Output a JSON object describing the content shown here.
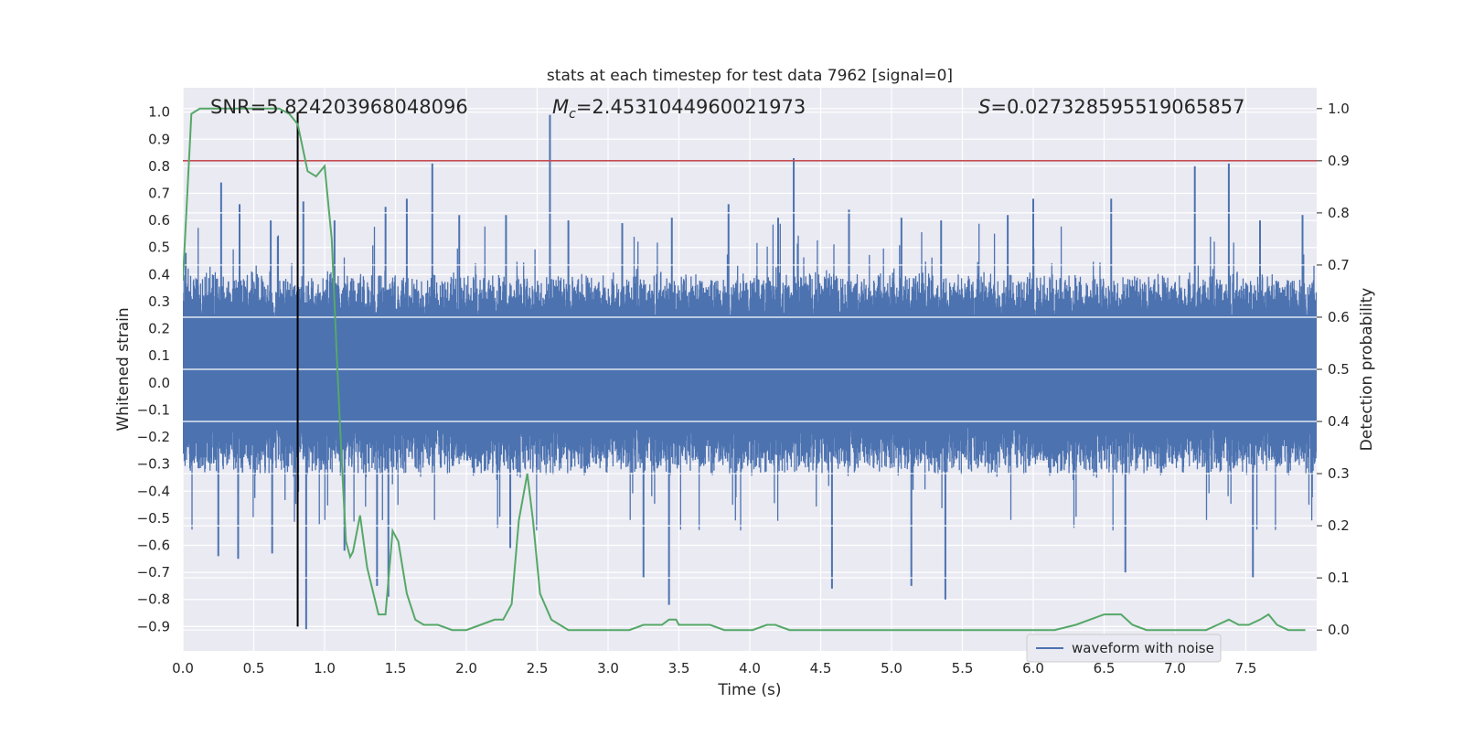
{
  "chart_data": {
    "type": "line",
    "title": "stats at each timestep for test data 7962 [signal=0]",
    "xlabel": "Time (s)",
    "ylabel_left": "Whitened strain",
    "ylabel_right": "Detection probability",
    "xlim": [
      0.0,
      8.0
    ],
    "ylim_left": [
      -0.99,
      1.09
    ],
    "ylim_right": [
      -0.04,
      1.04
    ],
    "x_ticks": [
      "0.0",
      "0.5",
      "1.0",
      "1.5",
      "2.0",
      "2.5",
      "3.0",
      "3.5",
      "4.0",
      "4.5",
      "5.0",
      "5.5",
      "6.0",
      "6.5",
      "7.0",
      "7.5"
    ],
    "y_ticks_left": [
      "−0.9",
      "−0.8",
      "−0.7",
      "−0.6",
      "−0.5",
      "−0.4",
      "−0.3",
      "−0.2",
      "−0.1",
      "0.0",
      "0.1",
      "0.2",
      "0.3",
      "0.4",
      "0.5",
      "0.6",
      "0.7",
      "0.8",
      "0.9",
      "1.0"
    ],
    "y_ticks_right": [
      "0.0",
      "0.1",
      "0.2",
      "0.3",
      "0.4",
      "0.5",
      "0.6",
      "0.7",
      "0.8",
      "0.9",
      "1.0"
    ],
    "grid": true,
    "legend_position": "lower-right",
    "annotations": {
      "snr": "SNR=5.824203968048096",
      "mc_symbol": "M",
      "mc_sub": "c",
      "mc_value": "=2.4531044960021973",
      "s_symbol": "S",
      "s_value": "=0.027328595519065857"
    },
    "threshold_right": 0.9,
    "marker_x": 0.81,
    "series": [
      {
        "name": "waveform with noise",
        "axis": "left",
        "color": "#4c72b0",
        "sample_rate_hz": 512,
        "typical_envelope": [
          -0.35,
          0.42
        ],
        "peaks_up": [
          [
            0.02,
            0.48
          ],
          [
            0.27,
            0.74
          ],
          [
            0.4,
            0.66
          ],
          [
            0.62,
            0.6
          ],
          [
            0.85,
            0.67
          ],
          [
            1.07,
            0.6
          ],
          [
            1.43,
            0.65
          ],
          [
            1.58,
            0.68
          ],
          [
            1.76,
            0.81
          ],
          [
            1.95,
            0.62
          ],
          [
            2.28,
            0.62
          ],
          [
            2.59,
            0.99
          ],
          [
            2.72,
            0.6
          ],
          [
            3.1,
            0.59
          ],
          [
            3.45,
            0.61
          ],
          [
            3.85,
            0.66
          ],
          [
            4.2,
            0.61
          ],
          [
            4.31,
            0.83
          ],
          [
            4.7,
            0.64
          ],
          [
            5.07,
            0.61
          ],
          [
            5.35,
            0.6
          ],
          [
            5.82,
            0.62
          ],
          [
            6.0,
            0.68
          ],
          [
            6.55,
            0.68
          ],
          [
            7.14,
            0.8
          ],
          [
            7.38,
            0.81
          ],
          [
            7.6,
            0.6
          ],
          [
            7.9,
            0.62
          ]
        ],
        "peaks_down": [
          [
            0.25,
            -0.64
          ],
          [
            0.39,
            -0.65
          ],
          [
            0.63,
            -0.63
          ],
          [
            0.87,
            -0.91
          ],
          [
            1.14,
            -0.62
          ],
          [
            1.37,
            -0.75
          ],
          [
            1.45,
            -0.79
          ],
          [
            2.31,
            -0.61
          ],
          [
            3.25,
            -0.72
          ],
          [
            3.43,
            -0.82
          ],
          [
            4.58,
            -0.76
          ],
          [
            5.14,
            -0.75
          ],
          [
            5.38,
            -0.8
          ],
          [
            6.65,
            -0.7
          ],
          [
            7.55,
            -0.72
          ]
        ]
      },
      {
        "name": "",
        "axis": "right",
        "color": "#55a868",
        "x": [
          0.0,
          0.06,
          0.12,
          0.22,
          0.38,
          0.55,
          0.68,
          0.75,
          0.81,
          0.88,
          0.94,
          1.0,
          1.05,
          1.09,
          1.12,
          1.15,
          1.18,
          1.2,
          1.25,
          1.3,
          1.38,
          1.43,
          1.48,
          1.52,
          1.58,
          1.64,
          1.7,
          1.8,
          1.9,
          2.0,
          2.1,
          2.2,
          2.26,
          2.32,
          2.37,
          2.43,
          2.47,
          2.52,
          2.6,
          2.66,
          2.72,
          2.82,
          3.0,
          3.15,
          3.25,
          3.38,
          3.43,
          3.48,
          3.5,
          3.55,
          3.62,
          3.72,
          3.82,
          3.92,
          4.02,
          4.12,
          4.18,
          4.28,
          4.4,
          4.55,
          4.7,
          4.85,
          4.92,
          5.05,
          5.2,
          5.4,
          5.6,
          5.8,
          6.0,
          6.15,
          6.3,
          6.4,
          6.5,
          6.56,
          6.62,
          6.7,
          6.8,
          6.95,
          7.1,
          7.22,
          7.3,
          7.38,
          7.45,
          7.52,
          7.6,
          7.66,
          7.72,
          7.8,
          7.92
        ],
        "y": [
          0.67,
          0.99,
          1.0,
          1.0,
          1.0,
          1.0,
          1.0,
          0.99,
          0.97,
          0.88,
          0.87,
          0.89,
          0.75,
          0.5,
          0.33,
          0.17,
          0.14,
          0.15,
          0.22,
          0.12,
          0.03,
          0.03,
          0.19,
          0.17,
          0.07,
          0.02,
          0.01,
          0.01,
          0.0,
          0.0,
          0.01,
          0.02,
          0.02,
          0.05,
          0.21,
          0.3,
          0.21,
          0.07,
          0.02,
          0.01,
          0.0,
          0.0,
          0.0,
          0.0,
          0.01,
          0.01,
          0.02,
          0.02,
          0.01,
          0.01,
          0.01,
          0.01,
          0.0,
          0.0,
          0.0,
          0.01,
          0.01,
          0.0,
          0.0,
          0.0,
          0.0,
          0.0,
          0.0,
          0.0,
          0.0,
          0.0,
          0.0,
          0.0,
          0.0,
          0.0,
          0.01,
          0.02,
          0.03,
          0.03,
          0.03,
          0.01,
          0.0,
          0.0,
          0.0,
          0.0,
          0.01,
          0.02,
          0.01,
          0.01,
          0.02,
          0.03,
          0.01,
          0.0,
          0.0
        ]
      }
    ],
    "colors": {
      "plot_background": "#eaeaf2",
      "grid": "#ffffff",
      "threshold_line": "#c44e52",
      "marker_line": "#000000"
    }
  }
}
